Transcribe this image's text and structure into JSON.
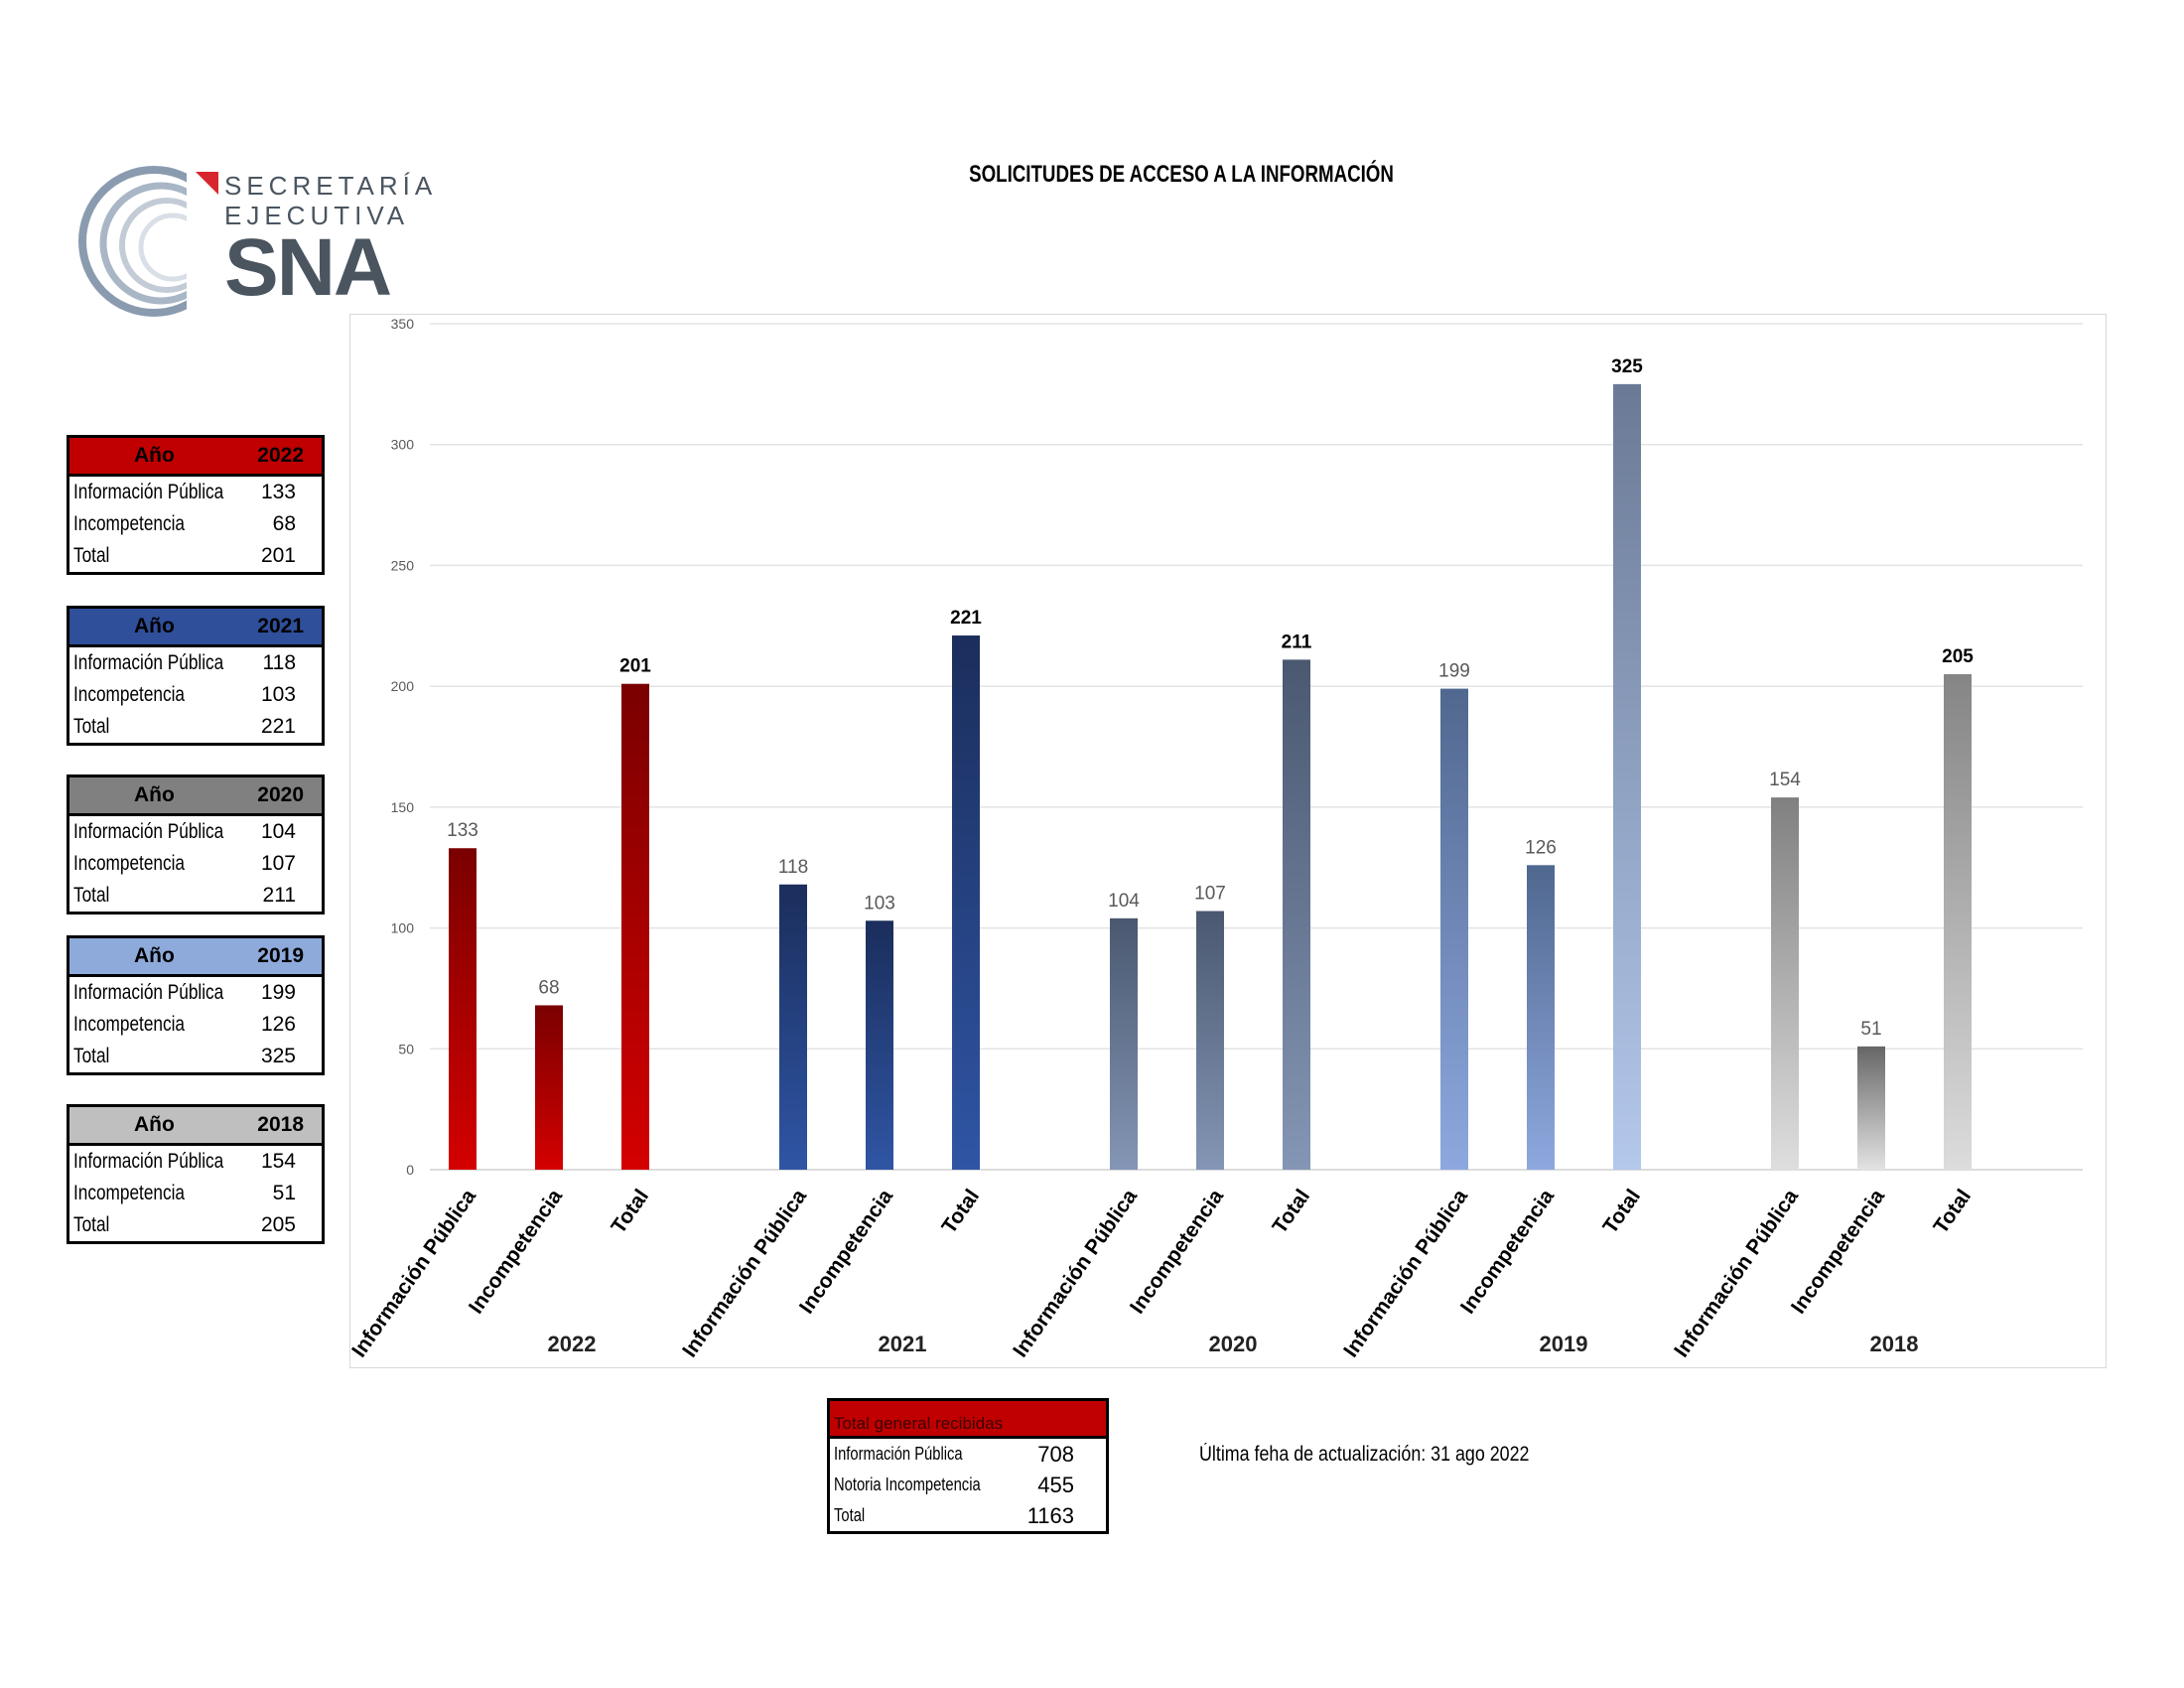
{
  "logo": {
    "line1": "SECRETARÍA",
    "line2": "EJECUTIVA",
    "line3": "SNA"
  },
  "title": "SOLICITUDES DE ACCESO A LA INFORMACIÓN",
  "year_tables": [
    {
      "header_label": "Año",
      "year": "2022",
      "header_color": "#c00000",
      "rows": [
        {
          "label": "Información Pública",
          "value": "133"
        },
        {
          "label": "Incompetencia",
          "value": "68"
        },
        {
          "label": "Total",
          "value": "201"
        }
      ]
    },
    {
      "header_label": "Año",
      "year": "2021",
      "header_color": "#2f4f9a",
      "rows": [
        {
          "label": "Información Pública",
          "value": "118"
        },
        {
          "label": "Incompetencia",
          "value": "103"
        },
        {
          "label": "Total",
          "value": "221"
        }
      ]
    },
    {
      "header_label": "Año",
      "year": "2020",
      "header_color": "#808080",
      "rows": [
        {
          "label": "Información Pública",
          "value": "104"
        },
        {
          "label": "Incompetencia",
          "value": "107"
        },
        {
          "label": "Total",
          "value": "211"
        }
      ]
    },
    {
      "header_label": "Año",
      "year": "2019",
      "header_color": "#8eaadb",
      "rows": [
        {
          "label": "Información Pública",
          "value": "199"
        },
        {
          "label": "Incompetencia",
          "value": "126"
        },
        {
          "label": "Total",
          "value": "325"
        }
      ]
    },
    {
      "header_label": "Año",
      "year": "2018",
      "header_color": "#bfbfbf",
      "rows": [
        {
          "label": "Información Pública",
          "value": "154"
        },
        {
          "label": "Incompetencia",
          "value": "51"
        },
        {
          "label": "Total",
          "value": "205"
        }
      ]
    }
  ],
  "summary": {
    "header": "Total general recibidas",
    "rows": [
      {
        "label": "Información Pública",
        "value": "708"
      },
      {
        "label": "Notoria Incompetencia",
        "value": "455"
      },
      {
        "label": "Total",
        "value": "1163"
      }
    ]
  },
  "update_note": "Última feha de actualización: 31 ago 2022",
  "chart_data": {
    "type": "bar",
    "title": "SOLICITUDES DE ACCESO A LA INFORMACIÓN",
    "ylim": [
      0,
      350
    ],
    "yticks": [
      0,
      50,
      100,
      150,
      200,
      250,
      300,
      350
    ],
    "grid": true,
    "groups": [
      {
        "year": "2022",
        "categories": [
          "Información Pública",
          "Incompetencia",
          "Total"
        ],
        "values": [
          133,
          68,
          201
        ],
        "colors": [
          [
            "#7a0000",
            "#d40000"
          ],
          [
            "#7a0000",
            "#d40000"
          ],
          [
            "#7a0000",
            "#d40000"
          ]
        ]
      },
      {
        "year": "2021",
        "categories": [
          "Información Pública",
          "Incompetencia",
          "Total"
        ],
        "values": [
          118,
          103,
          221
        ],
        "colors": [
          [
            "#1b2e5c",
            "#2f55a4"
          ],
          [
            "#1b2e5c",
            "#2f55a4"
          ],
          [
            "#1b2e5c",
            "#2f55a4"
          ]
        ]
      },
      {
        "year": "2020",
        "categories": [
          "Información Pública",
          "Incompetencia",
          "Total"
        ],
        "values": [
          104,
          107,
          211
        ],
        "colors": [
          [
            "#4a5870",
            "#8496b5"
          ],
          [
            "#4a5870",
            "#8496b5"
          ],
          [
            "#4a5870",
            "#8496b5"
          ]
        ]
      },
      {
        "year": "2019",
        "categories": [
          "Información Pública",
          "Incompetencia",
          "Total"
        ],
        "values": [
          199,
          126,
          325
        ],
        "colors": [
          [
            "#50688f",
            "#8ea8df"
          ],
          [
            "#50688f",
            "#8ea8df"
          ],
          [
            "#6a7a96",
            "#b4c8ec"
          ]
        ]
      },
      {
        "year": "2018",
        "categories": [
          "Información Pública",
          "Incompetencia",
          "Total"
        ],
        "values": [
          154,
          51,
          205
        ],
        "colors": [
          [
            "#808080",
            "#dedede"
          ],
          [
            "#666666",
            "#e2e2e2"
          ],
          [
            "#858585",
            "#dcdcdc"
          ]
        ]
      }
    ],
    "bold_labels": [
      "Total"
    ]
  }
}
